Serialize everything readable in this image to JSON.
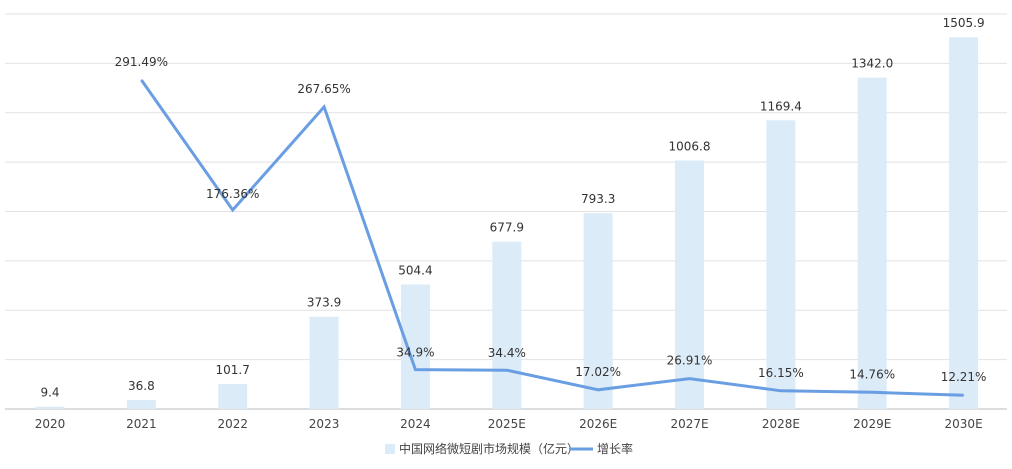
{
  "chart_data": {
    "type": "bar",
    "categories": [
      "2020",
      "2021",
      "2022",
      "2023",
      "2024",
      "2025E",
      "2026E",
      "2027E",
      "2028E",
      "2029E",
      "2030E"
    ],
    "series": [
      {
        "name": "中国网络微短剧市场规模（亿元）",
        "type": "bar",
        "axis": "left",
        "color": "#dcebf8",
        "values": [
          9.4,
          36.8,
          101.7,
          373.9,
          504.4,
          677.9,
          793.3,
          1006.8,
          1169.4,
          1342.0,
          1505.9
        ],
        "labels": [
          "9.4",
          "36.8",
          "101.7",
          "373.9",
          "504.4",
          "677.9",
          "793.3",
          "1006.8",
          "1169.4",
          "1342.0",
          "1505.9"
        ]
      },
      {
        "name": "增长率",
        "type": "line",
        "axis": "right",
        "color": "#6a9ee3",
        "values": [
          null,
          291.49,
          176.36,
          267.65,
          34.9,
          34.4,
          17.02,
          26.91,
          16.15,
          14.76,
          12.21
        ],
        "labels": [
          "",
          "291.49%",
          "176.36%",
          "267.65%",
          "34.9%",
          "34.4%",
          "17.02%",
          "26.91%",
          "16.15%",
          "14.76%",
          "12.21%"
        ]
      }
    ],
    "ylim_left": [
      0,
      1600
    ],
    "ylim_right": [
      0,
      350
    ],
    "grid": true,
    "legend_position": "bottom-center"
  },
  "legend": {
    "bar_label": "中国网络微短剧市场规模（亿元）",
    "line_label": "增长率"
  }
}
